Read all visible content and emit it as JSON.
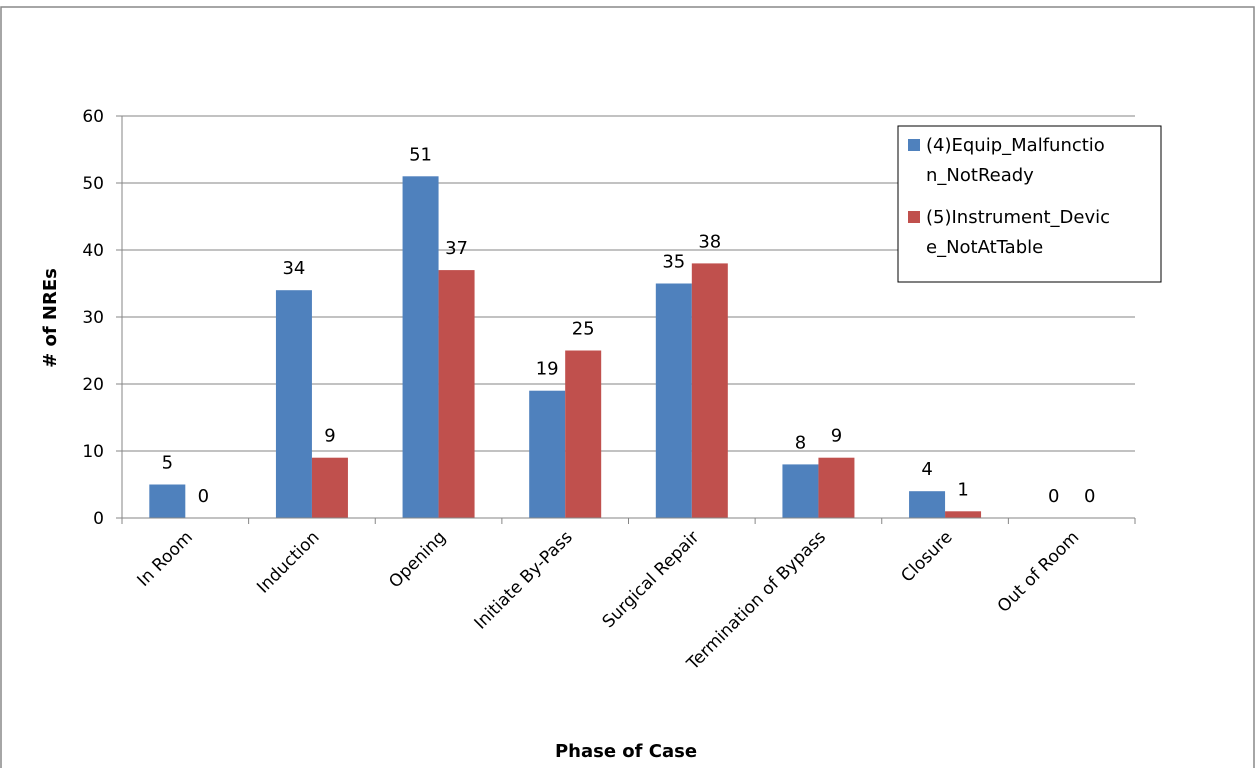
{
  "chart_data": {
    "type": "bar",
    "title": "",
    "xlabel": "Phase of Case",
    "ylabel": "# of NREs",
    "ylim": [
      0,
      60
    ],
    "yticks": [
      0,
      10,
      20,
      30,
      40,
      50,
      60
    ],
    "grid": true,
    "legend_position": "top-right",
    "categories": [
      "In Room",
      "Induction",
      "Opening",
      "Initiate By-Pass",
      "Surgical Repair",
      "Termination of Bypass",
      "Closure",
      "Out of Room"
    ],
    "series": [
      {
        "name": "(4)Equip_Malfunction_NotReady",
        "legend_lines": [
          "(4)Equip_Malfunctio",
          "n_NotReady"
        ],
        "color": "#4F81BD",
        "values": [
          5,
          34,
          51,
          19,
          35,
          8,
          4,
          0
        ]
      },
      {
        "name": "(5)Instrument_Device_NotAtTable",
        "legend_lines": [
          "(5)Instrument_Devic",
          "e_NotAtTable"
        ],
        "color": "#C0504D",
        "values": [
          0,
          9,
          37,
          25,
          38,
          9,
          1,
          0
        ]
      }
    ]
  }
}
